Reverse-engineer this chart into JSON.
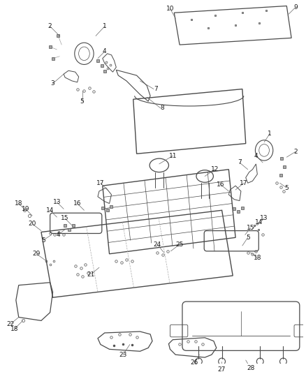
{
  "bg_color": "#ffffff",
  "line_color": "#4a4a4a",
  "lw": 0.8,
  "figsize": [
    4.39,
    5.33
  ],
  "dpi": 100,
  "label_fontsize": 6.5,
  "label_color": "#1a1a1a"
}
